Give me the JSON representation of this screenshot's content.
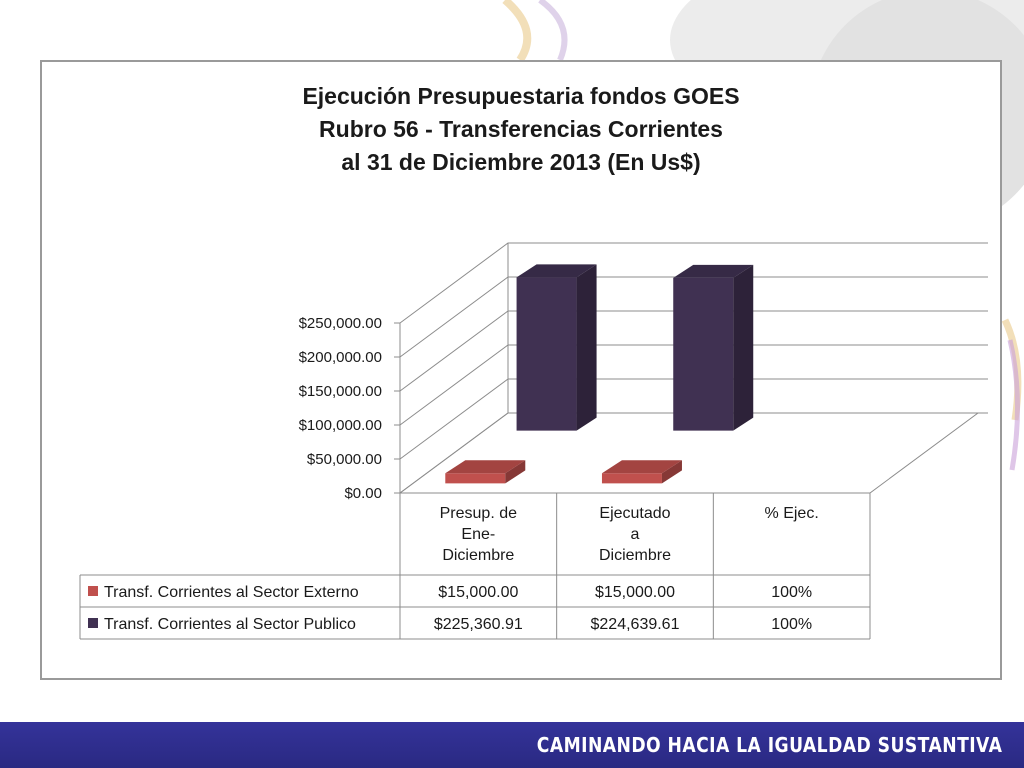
{
  "slide": {
    "footer_text": "CAMINANDO HACIA LA IGUALDAD SUSTANTIVA",
    "footer_color": "#2f2e90"
  },
  "chart_data": {
    "type": "bar",
    "title": [
      "Ejecución Presupuestaria fondos GOES",
      "Rubro 56 - Transferencias Corrientes",
      "al 31 de Diciembre 2013 (En Us$)"
    ],
    "categories": [
      "Presup. de\nEne-\nDiciembre",
      "Ejecutado\na\nDiciembre",
      "% Ejec."
    ],
    "ylim": [
      0,
      250000
    ],
    "y_ticks": [
      {
        "value": 0,
        "label": "$0.00"
      },
      {
        "value": 50000,
        "label": "$50,000.00"
      },
      {
        "value": 100000,
        "label": "$100,000.00"
      },
      {
        "value": 150000,
        "label": "$150,000.00"
      },
      {
        "value": 200000,
        "label": "$200,000.00"
      },
      {
        "value": 250000,
        "label": "$250,000.00"
      }
    ],
    "series": [
      {
        "name": "Transf. Corrientes al Sector Externo",
        "color": "#c0504d",
        "values": [
          15000.0,
          15000.0,
          1.0
        ],
        "table_labels": [
          "$15,000.00",
          "$15,000.00",
          "100%"
        ]
      },
      {
        "name": "Transf. Corrientes al Sector Publico",
        "color": "#403152",
        "values": [
          225360.91,
          224639.61,
          1.0
        ],
        "table_labels": [
          "$225,360.91",
          "$224,639.61",
          "100%"
        ]
      }
    ],
    "style": "3d-column with data table",
    "grid": true
  }
}
